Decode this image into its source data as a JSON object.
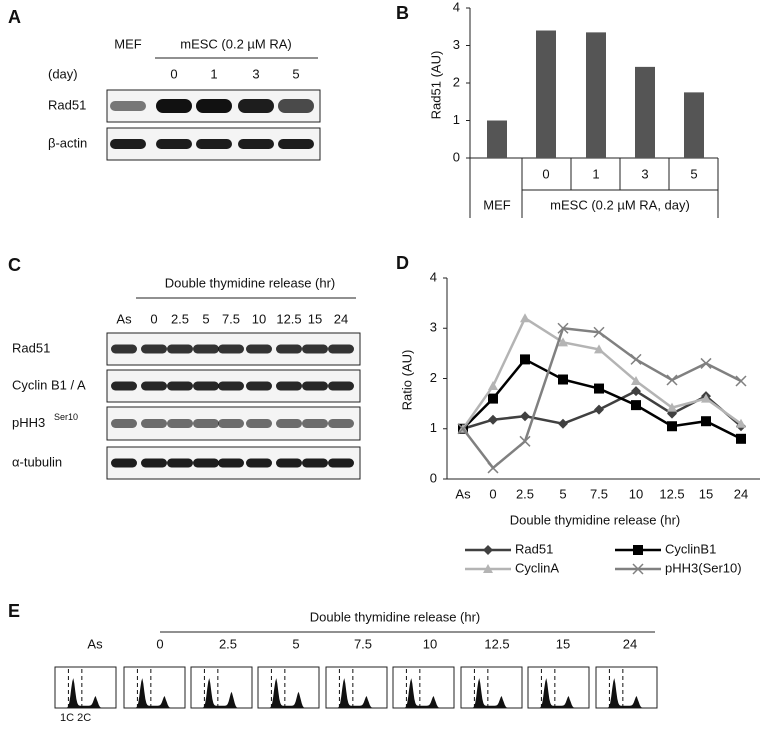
{
  "panel_labels": [
    "A",
    "B",
    "C",
    "D",
    "E"
  ],
  "blot_a": {
    "header": "MEF",
    "group": "mESC (0.2 µM RA)",
    "row_label": "(day)",
    "lanes": [
      "0",
      "1",
      "3",
      "5"
    ],
    "rows": [
      "Rad51",
      "β-actin"
    ]
  },
  "blot_c": {
    "title": "Double thymidine release (hr)",
    "lanes": [
      "As",
      "0",
      "2.5",
      "5",
      "7.5",
      "10",
      "12.5",
      "15",
      "24"
    ],
    "rows": [
      "Rad51",
      "Cyclin B1 / A",
      "pHH3",
      "α-tubulin"
    ],
    "row_superscript": "Ser10"
  },
  "flow_e": {
    "title": "Double thymidine release (hr)",
    "lanes": [
      "As",
      "0",
      "2.5",
      "5",
      "7.5",
      "10",
      "12.5",
      "15",
      "24"
    ],
    "peaks": "1C 2C"
  },
  "chart_data": [
    {
      "type": "bar",
      "y_label": "Rad51 (AU)",
      "categories": [
        "MEF",
        "0",
        "1",
        "3",
        "5"
      ],
      "x_group_label": "mESC (0.2 µM RA, day)",
      "values": [
        1.0,
        3.4,
        3.35,
        2.43,
        1.75
      ],
      "color": "#555555",
      "ylim": [
        0,
        4
      ],
      "yticks": [
        0,
        1,
        2,
        3,
        4
      ]
    },
    {
      "type": "line",
      "y_label": "Ratio (AU)",
      "x_label": "Double thymidine release (hr)",
      "categories": [
        "As",
        "0",
        "2.5",
        "5",
        "7.5",
        "10",
        "12.5",
        "15",
        "24"
      ],
      "ylim": [
        0,
        4
      ],
      "yticks": [
        0,
        1,
        2,
        3,
        4
      ],
      "series": [
        {
          "name": "Rad51",
          "color": "#404040",
          "marker": "diamond",
          "values": [
            1.0,
            1.18,
            1.25,
            1.1,
            1.38,
            1.75,
            1.3,
            1.65,
            1.05
          ]
        },
        {
          "name": "CyclinB1",
          "color": "#000000",
          "marker": "square",
          "values": [
            1.0,
            1.6,
            2.38,
            1.98,
            1.8,
            1.47,
            1.05,
            1.15,
            0.8
          ]
        },
        {
          "name": "CyclinA",
          "color": "#b4b4b4",
          "marker": "triangle",
          "values": [
            1.0,
            1.85,
            3.2,
            2.72,
            2.58,
            1.95,
            1.42,
            1.6,
            1.1
          ]
        },
        {
          "name": "pHH3(Ser10)",
          "color": "#808080",
          "marker": "x",
          "values": [
            1.0,
            0.22,
            0.75,
            3.0,
            2.92,
            2.38,
            1.97,
            2.3,
            1.95
          ]
        }
      ]
    }
  ]
}
